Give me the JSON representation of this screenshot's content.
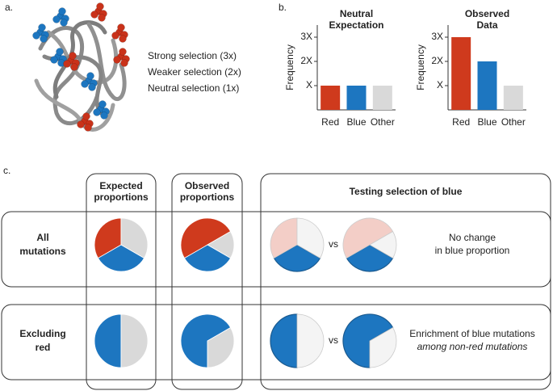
{
  "panel_a": {
    "label": "a.",
    "legend": [
      {
        "text": "Strong selection  (3x)",
        "color": "#c9321a"
      },
      {
        "text": "Weaker selection (2x)",
        "color": "#1b75bb"
      },
      {
        "text": "Neutral selection (1x)",
        "color": "#8c8c8c"
      }
    ]
  },
  "panel_b": {
    "label": "b."
  },
  "chart_data": [
    {
      "type": "bar",
      "title": [
        "Neutral",
        "Expectation"
      ],
      "y_label": "Frequency",
      "categories": [
        "Red",
        "Blue",
        "Other"
      ],
      "values": [
        1,
        1,
        1
      ],
      "colors": [
        "#cf3a1d",
        "#1d76c0",
        "#d9d9d9"
      ],
      "ylim": [
        0,
        3.5
      ],
      "yticks": [
        {
          "value": 1,
          "label": "X"
        },
        {
          "value": 2,
          "label": "2X"
        },
        {
          "value": 3,
          "label": "3X"
        }
      ]
    },
    {
      "type": "bar",
      "title": [
        "Observed",
        "Data"
      ],
      "y_label": "Frequency",
      "categories": [
        "Red",
        "Blue",
        "Other"
      ],
      "values": [
        3,
        2,
        1
      ],
      "colors": [
        "#cf3a1d",
        "#1d76c0",
        "#d9d9d9"
      ],
      "ylim": [
        0,
        3.5
      ],
      "yticks": [
        {
          "value": 1,
          "label": "X"
        },
        {
          "value": 2,
          "label": "2X"
        },
        {
          "value": 3,
          "label": "3X"
        }
      ]
    }
  ],
  "panel_c": {
    "label": "c.",
    "columns": [
      [
        "Expected",
        "proportions"
      ],
      [
        "Observed",
        "proportions"
      ],
      [
        "Testing selection of blue"
      ]
    ],
    "vs": "vs",
    "rows": [
      {
        "label": [
          "All",
          "mutations"
        ],
        "colors": [
          "#1d76c0",
          "#cf3a1d",
          "#d9d9d9"
        ],
        "expected": [
          1,
          1,
          1
        ],
        "observed": [
          2,
          3,
          1
        ],
        "note": [
          "No change",
          "in blue proportion"
        ]
      },
      {
        "label": [
          "Excluding",
          "red"
        ],
        "colors": [
          "#1d76c0",
          "#d9d9d9"
        ],
        "expected": [
          1,
          1
        ],
        "observed": [
          2,
          1
        ],
        "note": [
          "Enrichment of blue mutations",
          "among non-red mutations"
        ]
      }
    ]
  }
}
